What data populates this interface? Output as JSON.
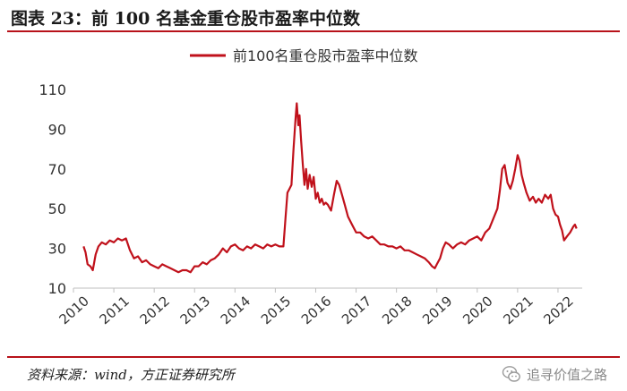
{
  "figure": {
    "title": "图表 23：前 100 名基金重仓股市盈率中位数",
    "source": "资料来源：wind，方正证券研究所",
    "watermark": "追寻价值之路"
  },
  "colors": {
    "series": "#c0111b",
    "rule": "#b8121a",
    "axis": "#bfbfbf"
  },
  "chart_data": {
    "type": "line",
    "legend": {
      "label": "前100名重仓股市盈率中位数",
      "position": "top-center"
    },
    "xlabel": "",
    "ylabel": "",
    "ylim": [
      10,
      110
    ],
    "yticks": [
      10,
      30,
      50,
      70,
      90,
      110
    ],
    "xlim": [
      2010.0,
      2022.6
    ],
    "xticks": [
      "2010",
      "2011",
      "2012",
      "2013",
      "2014",
      "2015",
      "2016",
      "2017",
      "2018",
      "2019",
      "2020",
      "2021",
      "2022"
    ],
    "grid": false,
    "series": [
      {
        "name": "前100名重仓股市盈率中位数",
        "points": [
          [
            2010.25,
            31
          ],
          [
            2010.3,
            28
          ],
          [
            2010.35,
            22
          ],
          [
            2010.42,
            21
          ],
          [
            2010.48,
            19
          ],
          [
            2010.55,
            27
          ],
          [
            2010.62,
            31
          ],
          [
            2010.7,
            33
          ],
          [
            2010.8,
            32
          ],
          [
            2010.9,
            34
          ],
          [
            2011.0,
            33
          ],
          [
            2011.1,
            35
          ],
          [
            2011.2,
            34
          ],
          [
            2011.3,
            35
          ],
          [
            2011.4,
            29
          ],
          [
            2011.5,
            25
          ],
          [
            2011.6,
            26
          ],
          [
            2011.7,
            23
          ],
          [
            2011.8,
            24
          ],
          [
            2011.9,
            22
          ],
          [
            2012.0,
            21
          ],
          [
            2012.1,
            20
          ],
          [
            2012.2,
            22
          ],
          [
            2012.3,
            21
          ],
          [
            2012.4,
            20
          ],
          [
            2012.5,
            19
          ],
          [
            2012.6,
            18
          ],
          [
            2012.7,
            19
          ],
          [
            2012.8,
            19
          ],
          [
            2012.9,
            18
          ],
          [
            2013.0,
            21
          ],
          [
            2013.1,
            21
          ],
          [
            2013.2,
            23
          ],
          [
            2013.3,
            22
          ],
          [
            2013.4,
            24
          ],
          [
            2013.5,
            25
          ],
          [
            2013.6,
            27
          ],
          [
            2013.7,
            30
          ],
          [
            2013.8,
            28
          ],
          [
            2013.9,
            31
          ],
          [
            2014.0,
            32
          ],
          [
            2014.1,
            30
          ],
          [
            2014.2,
            29
          ],
          [
            2014.3,
            31
          ],
          [
            2014.4,
            30
          ],
          [
            2014.5,
            32
          ],
          [
            2014.6,
            31
          ],
          [
            2014.7,
            30
          ],
          [
            2014.8,
            32
          ],
          [
            2014.9,
            31
          ],
          [
            2015.0,
            32
          ],
          [
            2015.1,
            31
          ],
          [
            2015.2,
            31
          ],
          [
            2015.25,
            45
          ],
          [
            2015.3,
            58
          ],
          [
            2015.35,
            60
          ],
          [
            2015.4,
            62
          ],
          [
            2015.45,
            80
          ],
          [
            2015.5,
            95
          ],
          [
            2015.53,
            103
          ],
          [
            2015.57,
            92
          ],
          [
            2015.6,
            97
          ],
          [
            2015.64,
            84
          ],
          [
            2015.68,
            72
          ],
          [
            2015.72,
            62
          ],
          [
            2015.76,
            70
          ],
          [
            2015.8,
            60
          ],
          [
            2015.85,
            67
          ],
          [
            2015.9,
            61
          ],
          [
            2015.95,
            66
          ],
          [
            2016.0,
            55
          ],
          [
            2016.05,
            58
          ],
          [
            2016.1,
            53
          ],
          [
            2016.15,
            55
          ],
          [
            2016.2,
            52
          ],
          [
            2016.25,
            53
          ],
          [
            2016.3,
            52
          ],
          [
            2016.38,
            49
          ],
          [
            2016.45,
            57
          ],
          [
            2016.52,
            64
          ],
          [
            2016.58,
            62
          ],
          [
            2016.65,
            57
          ],
          [
            2016.72,
            52
          ],
          [
            2016.8,
            46
          ],
          [
            2016.9,
            42
          ],
          [
            2017.0,
            38
          ],
          [
            2017.1,
            38
          ],
          [
            2017.2,
            36
          ],
          [
            2017.3,
            35
          ],
          [
            2017.4,
            36
          ],
          [
            2017.5,
            34
          ],
          [
            2017.6,
            32
          ],
          [
            2017.7,
            32
          ],
          [
            2017.8,
            31
          ],
          [
            2017.9,
            31
          ],
          [
            2018.0,
            30
          ],
          [
            2018.1,
            31
          ],
          [
            2018.2,
            29
          ],
          [
            2018.3,
            29
          ],
          [
            2018.4,
            28
          ],
          [
            2018.5,
            27
          ],
          [
            2018.6,
            26
          ],
          [
            2018.7,
            25
          ],
          [
            2018.8,
            23
          ],
          [
            2018.88,
            21
          ],
          [
            2018.95,
            20
          ],
          [
            2019.0,
            22
          ],
          [
            2019.08,
            25
          ],
          [
            2019.15,
            30
          ],
          [
            2019.22,
            33
          ],
          [
            2019.3,
            32
          ],
          [
            2019.4,
            30
          ],
          [
            2019.5,
            32
          ],
          [
            2019.6,
            33
          ],
          [
            2019.7,
            32
          ],
          [
            2019.8,
            34
          ],
          [
            2019.9,
            35
          ],
          [
            2020.0,
            36
          ],
          [
            2020.1,
            34
          ],
          [
            2020.2,
            38
          ],
          [
            2020.3,
            40
          ],
          [
            2020.4,
            45
          ],
          [
            2020.5,
            50
          ],
          [
            2020.56,
            59
          ],
          [
            2020.62,
            70
          ],
          [
            2020.68,
            72
          ],
          [
            2020.75,
            63
          ],
          [
            2020.82,
            60
          ],
          [
            2020.88,
            64
          ],
          [
            2020.94,
            70
          ],
          [
            2021.0,
            77
          ],
          [
            2021.05,
            74
          ],
          [
            2021.1,
            67
          ],
          [
            2021.15,
            63
          ],
          [
            2021.22,
            58
          ],
          [
            2021.3,
            54
          ],
          [
            2021.38,
            56
          ],
          [
            2021.45,
            53
          ],
          [
            2021.52,
            55
          ],
          [
            2021.6,
            53
          ],
          [
            2021.68,
            57
          ],
          [
            2021.76,
            55
          ],
          [
            2021.82,
            57
          ],
          [
            2021.88,
            50
          ],
          [
            2021.94,
            47
          ],
          [
            2022.0,
            46
          ],
          [
            2022.05,
            42
          ],
          [
            2022.1,
            39
          ],
          [
            2022.15,
            34
          ],
          [
            2022.22,
            36
          ],
          [
            2022.3,
            38
          ],
          [
            2022.38,
            41
          ],
          [
            2022.42,
            42
          ],
          [
            2022.46,
            40
          ]
        ]
      }
    ]
  }
}
